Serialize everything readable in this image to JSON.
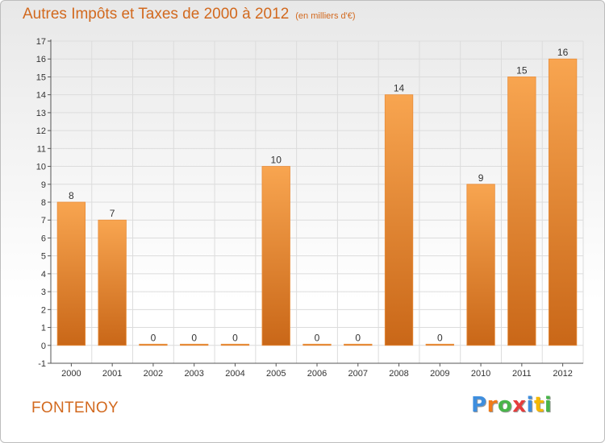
{
  "header": {
    "title": "Autres Impôts et Taxes de 2000 à 2012",
    "unit": "(en milliers d'€)"
  },
  "footer": {
    "place": "FONTENOY",
    "logo_letters": [
      "P",
      "r",
      "o",
      "x",
      "i",
      "t",
      "i"
    ],
    "logo_colors": [
      "#3e8ede",
      "#f07c1a",
      "#49b54a",
      "#e63d3d",
      "#3e8ede",
      "#f5b800",
      "#49b54a"
    ]
  },
  "colors": {
    "bar_light": "#f8a550",
    "bar_dark": "#c96718",
    "text": "#d2691e",
    "axis": "#555555",
    "grid": "#dcdcdc"
  },
  "chart_data": {
    "type": "bar",
    "title": "Autres Impôts et Taxes de 2000 à 2012",
    "categories": [
      "2000",
      "2001",
      "2002",
      "2003",
      "2004",
      "2005",
      "2006",
      "2007",
      "2008",
      "2009",
      "2010",
      "2011",
      "2012"
    ],
    "values": [
      8,
      7,
      0,
      0,
      0,
      10,
      0,
      0,
      14,
      0,
      9,
      15,
      16
    ],
    "ylim": [
      -1,
      17
    ],
    "yticks": [
      -1,
      0,
      1,
      2,
      3,
      4,
      5,
      6,
      7,
      8,
      9,
      10,
      11,
      12,
      13,
      14,
      15,
      16,
      17
    ],
    "grid": true
  }
}
